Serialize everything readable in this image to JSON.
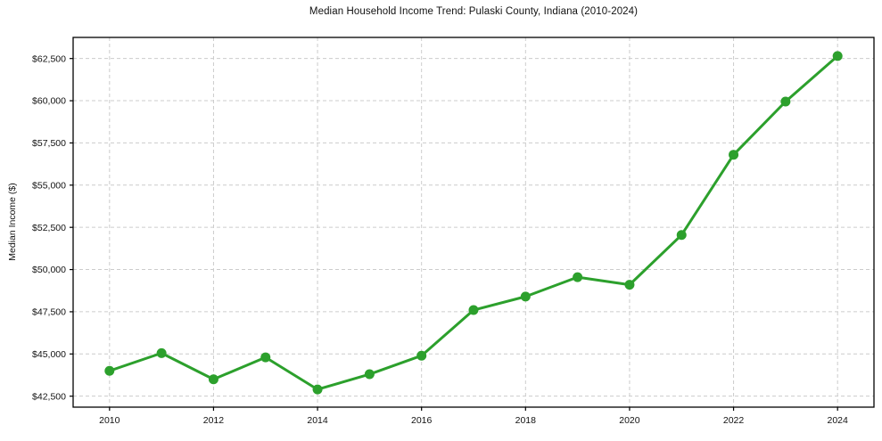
{
  "chart_data": {
    "type": "line",
    "title": "Median Household Income Trend: Pulaski County, Indiana (2010-2024)",
    "xlabel": "",
    "ylabel": "Median Income ($)",
    "x": [
      2010,
      2011,
      2012,
      2013,
      2014,
      2015,
      2016,
      2017,
      2018,
      2019,
      2020,
      2021,
      2022,
      2023,
      2024
    ],
    "values": [
      44000,
      45050,
      43500,
      44800,
      42900,
      43800,
      44900,
      47600,
      48400,
      49550,
      49100,
      52050,
      56800,
      59950,
      62650
    ],
    "series_name": "Median Household Income",
    "line_color": "#2ca02c",
    "marker_color": "#2ca02c",
    "marker_shape": "circle",
    "grid": true,
    "grid_color": "#cccccc",
    "grid_style": "dashed",
    "legend": "none",
    "background_color": "#ffffff",
    "axis_border_color": "#000000",
    "xlim": [
      2009.3,
      2024.7
    ],
    "ylim": [
      41850,
      63750
    ],
    "xticks": {
      "values": [
        2010,
        2012,
        2014,
        2016,
        2018,
        2020,
        2022,
        2024
      ],
      "labels": [
        "2010",
        "2012",
        "2014",
        "2016",
        "2018",
        "2020",
        "2022",
        "2024"
      ]
    },
    "yticks": {
      "values": [
        42500,
        45000,
        47500,
        50000,
        52500,
        55000,
        57500,
        60000,
        62500
      ],
      "labels": [
        "$42,500",
        "$45,000",
        "$47,500",
        "$50,000",
        "$52,500",
        "$55,000",
        "$57,500",
        "$60,000",
        "$62,500"
      ]
    }
  }
}
